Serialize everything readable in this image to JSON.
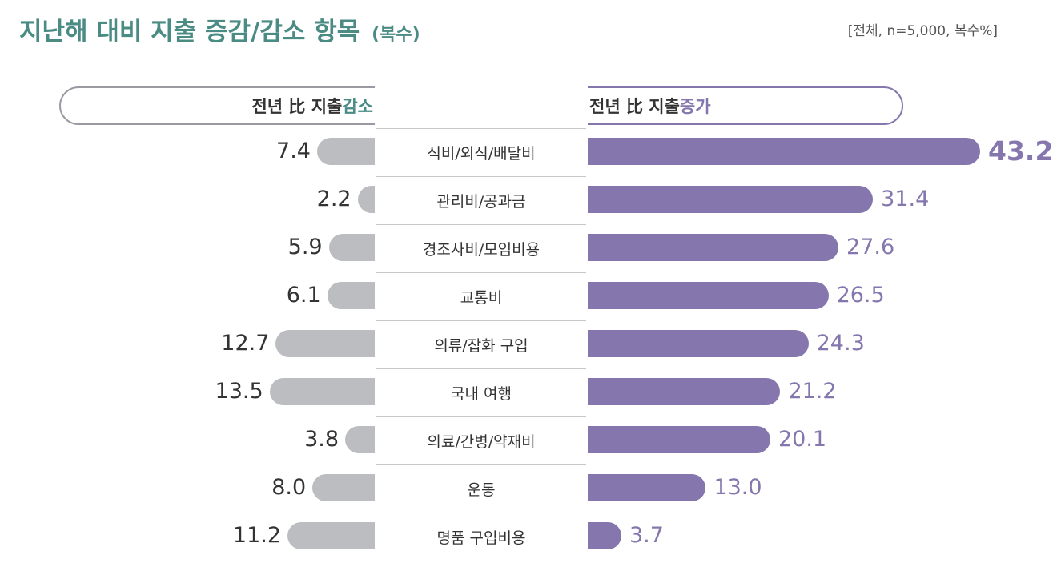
{
  "title": "지난해 대비 지출 증감/감소 항목",
  "title_sub": "(복수)",
  "note": "[전체, n=5,000, 복수%]",
  "chart_data": {
    "type": "bar",
    "orientation": "diverging-horizontal",
    "categories": [
      "식비/외식/배달비",
      "관리비/공과금",
      "경조사비/모임비용",
      "교통비",
      "의류/잡화 구입",
      "국내 여행",
      "의료/간병/약재비",
      "운동",
      "명품 구입비용"
    ],
    "series": [
      {
        "name": "전년 比 지출 감소",
        "color": "#bcbdc1",
        "values": [
          7.4,
          2.2,
          5.9,
          6.1,
          12.7,
          13.5,
          3.8,
          8.0,
          11.2
        ]
      },
      {
        "name": "전년 比 지출 증가",
        "color": "#8577ae",
        "values": [
          43.2,
          31.4,
          27.6,
          26.5,
          24.3,
          21.2,
          20.1,
          13.0,
          3.7
        ]
      }
    ],
    "value_labels_left": [
      "7.4",
      "2.2",
      "5.9",
      "6.1",
      "12.7",
      "13.5",
      "3.8",
      "8.0",
      "11.2"
    ],
    "value_labels_right": [
      "43.2",
      "31.4",
      "27.6",
      "26.5",
      "24.3",
      "21.2",
      "20.1",
      "13.0",
      "3.7"
    ],
    "legend_left": {
      "prefix": "전년 比 지출 ",
      "keyword": "감소"
    },
    "legend_right": {
      "prefix": "전년 比 지출 ",
      "keyword": "증가"
    },
    "unit": "%"
  }
}
